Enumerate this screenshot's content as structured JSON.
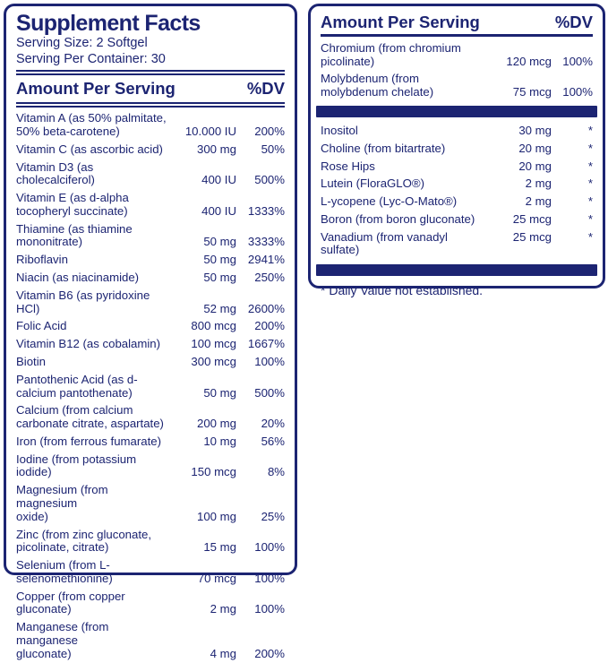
{
  "brand_color": "#1c2472",
  "left_panel": {
    "title": "Supplement Facts",
    "serving_size": "Serving Size: 2 Softgel",
    "servings_per_container": "Serving Per Container: 30",
    "header": {
      "amount_label": "Amount Per Serving",
      "dv_label": "%DV"
    },
    "rows": [
      {
        "name": "Vitamin A (as 50% palmitate,\n50% beta-carotene)",
        "amount": "10.000 IU",
        "dv": "200%"
      },
      {
        "name": "Vitamin C (as ascorbic acid)",
        "amount": "300 mg",
        "dv": "50%"
      },
      {
        "name": "Vitamin D3 (as cholecalciferol)",
        "amount": "400 IU",
        "dv": "500%"
      },
      {
        "name": "Vitamin E (as d-alpha\ntocopheryl succinate)",
        "amount": "400 IU",
        "dv": "1333%"
      },
      {
        "name": "Thiamine (as thiamine\nmononitrate)",
        "amount": "50 mg",
        "dv": "3333%"
      },
      {
        "name": "Riboflavin",
        "amount": "50 mg",
        "dv": "2941%"
      },
      {
        "name": "Niacin (as niacinamide)",
        "amount": "50 mg",
        "dv": "250%"
      },
      {
        "name": "Vitamin B6 (as pyridoxine HCl)",
        "amount": "52 mg",
        "dv": "2600%"
      },
      {
        "name": "Folic Acid",
        "amount": "800 mcg",
        "dv": "200%"
      },
      {
        "name": "Vitamin B12 (as cobalamin)",
        "amount": "100 mcg",
        "dv": "1667%"
      },
      {
        "name": "Biotin",
        "amount": "300 mcg",
        "dv": "100%"
      },
      {
        "name": "Pantothenic Acid (as d-\ncalcium pantothenate)",
        "amount": "50 mg",
        "dv": "500%"
      },
      {
        "name": "Calcium (from calcium\ncarbonate citrate, aspartate)",
        "amount": "200 mg",
        "dv": "20%"
      },
      {
        "name": "Iron (from ferrous fumarate)",
        "amount": "10 mg",
        "dv": "56%"
      },
      {
        "name": "Iodine (from potassium iodide)",
        "amount": "150 mcg",
        "dv": "8%"
      },
      {
        "name": "Magnesium (from magnesium\noxide)",
        "amount": "100 mg",
        "dv": "25%"
      },
      {
        "name": "Zinc (from zinc gluconate,\npicolinate, citrate)",
        "amount": "15 mg",
        "dv": "100%"
      },
      {
        "name": "Selenium (from L-\nselenomethionine)",
        "amount": "70 mcg",
        "dv": "100%"
      },
      {
        "name": "Copper (from copper\ngluconate)",
        "amount": "2 mg",
        "dv": "100%"
      },
      {
        "name": "Manganese (from manganese\ngluconate)",
        "amount": "4 mg",
        "dv": "200%"
      }
    ]
  },
  "right_panel": {
    "header": {
      "amount_label": "Amount Per Serving",
      "dv_label": "%DV"
    },
    "section1_rows": [
      {
        "name": "Chromium (from chromium\npicolinate)",
        "amount": "120 mcg",
        "dv": "100%"
      },
      {
        "name": "Molybdenum (from\nmolybdenum chelate)",
        "amount": "75 mcg",
        "dv": "100%"
      }
    ],
    "section2_rows": [
      {
        "name": "Inositol",
        "amount": "30 mg",
        "dv": "*"
      },
      {
        "name": "Choline (from bitartrate)",
        "amount": "20 mg",
        "dv": "*"
      },
      {
        "name": "Rose Hips",
        "amount": "20 mg",
        "dv": "*"
      },
      {
        "name": "Lutein (FloraGLO®)",
        "amount": "2 mg",
        "dv": "*"
      },
      {
        "name": "L-ycopene (Lyc-O-Mato®)",
        "amount": "2 mg",
        "dv": "*"
      },
      {
        "name": "Boron (from boron gluconate)",
        "amount": "25 mcg",
        "dv": "*"
      },
      {
        "name": "Vanadium (from vanadyl\nsulfate)",
        "amount": "25 mcg",
        "dv": "*",
        "align": "top"
      }
    ],
    "footnote": "* Daily Value not established."
  }
}
